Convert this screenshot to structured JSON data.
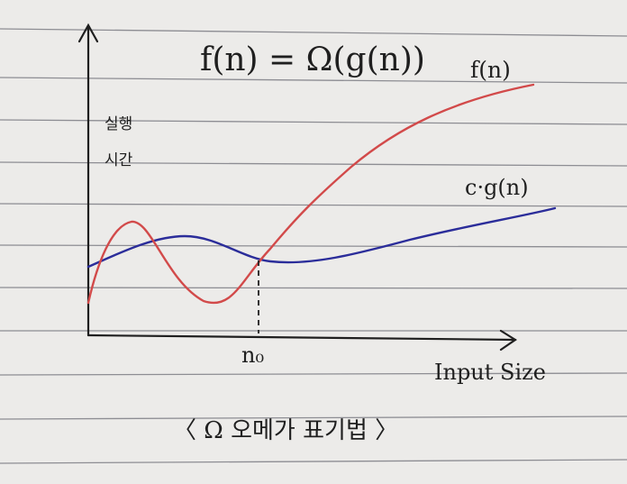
{
  "title": "f(n) = Ω(g(n))",
  "caption": "〈 Ω 오메가 표기법 〉",
  "axes": {
    "ylabel_line1": "실행",
    "ylabel_line2": "시간",
    "xlabel": "Input Size",
    "marker": "n₀"
  },
  "series": [
    {
      "name": "f(n)",
      "color": "#d24a4a"
    },
    {
      "name": "c·g(n)",
      "color": "#2b2d9a"
    }
  ],
  "colors": {
    "axis": "#1f1f1f",
    "paper": "#ecebe9",
    "ruled_line": "#8d8d93"
  }
}
